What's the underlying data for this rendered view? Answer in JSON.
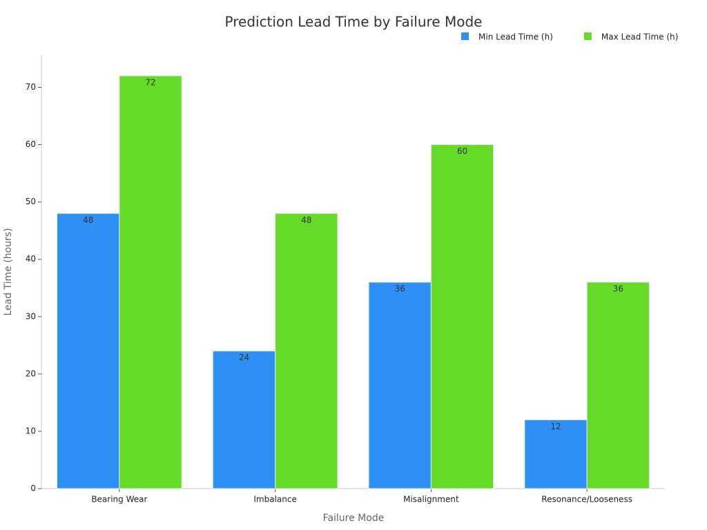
{
  "chart_data": {
    "type": "bar",
    "title": "Prediction Lead Time by Failure Mode",
    "x_label": "Failure Mode",
    "y_label": "Lead Time (hours)",
    "categories": [
      "Bearing Wear",
      "Imbalance",
      "Misalignment",
      "Resonance/Looseness"
    ],
    "series": [
      {
        "name": "Min Lead Time (h)",
        "color": "#2e90f5",
        "values": [
          48,
          24,
          36,
          12
        ]
      },
      {
        "name": "Max Lead Time (h)",
        "color": "#66db27",
        "values": [
          72,
          48,
          60,
          36
        ]
      }
    ],
    "ylim": [
      0,
      75.6
    ],
    "yticks": [
      0,
      10,
      20,
      30,
      40,
      50,
      60,
      70
    ],
    "legend": "top-right",
    "grid": false
  }
}
